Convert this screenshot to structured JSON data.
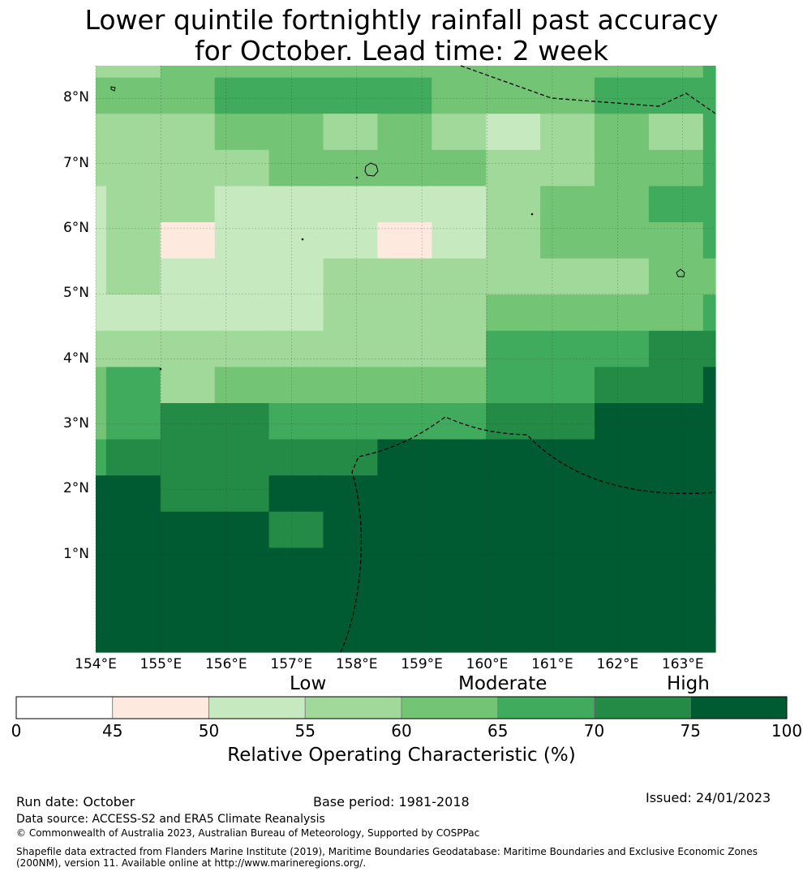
{
  "title": {
    "line1": "Lower quintile fortnightly rainfall past accuracy",
    "line2": "for October. Lead time: 2 week"
  },
  "map": {
    "lon_range": [
      154,
      163.5
    ],
    "lat_range": [
      -0.5,
      8.5
    ],
    "lat_labels": [
      "1°N",
      "2°N",
      "3°N",
      "4°N",
      "5°N",
      "6°N",
      "7°N",
      "8°N"
    ],
    "lon_labels": [
      "154°E",
      "155°E",
      "156°E",
      "157°E",
      "158°E",
      "159°E",
      "160°E",
      "161°E",
      "162°E",
      "163°E"
    ],
    "colors": [
      "#ffffff",
      "#fee9df",
      "#c7e9c0",
      "#a1d99b",
      "#74c476",
      "#41ab5d",
      "#238b45",
      "#005a32"
    ],
    "grid_rows": [
      "33444444444455",
      "44455554445556",
      "33344343234354",
      "33334444334454",
      "23322222344554",
      "23122212344455",
      "23222333333444",
      "22222333444455",
      "33333333555666",
      "45344444556677",
      "45665555667777",
      "56666677777777",
      "77667777777777",
      "77776777777777",
      "77777777777777",
      "77777777777777",
      "77777777777777"
    ]
  },
  "colorbar": {
    "ticks": [
      "0",
      "45",
      "50",
      "55",
      "60",
      "65",
      "70",
      "75",
      "100"
    ],
    "categories": [
      "Low",
      "Moderate",
      "High"
    ],
    "title": "Relative Operating Characteristic (%)"
  },
  "footer": {
    "run_date": "Run date: October",
    "base_period": "Base period: 1981-2018",
    "issued": "Issued: 24/01/2023",
    "data_source": "Data source: ACCESS-S2 and ERA5 Climate Reanalysis",
    "copyright": "© Commonwealth of Australia 2023, Australian Bureau of Meteorology, Supported by COSPPac",
    "shapefile_line1": "Shapefile data extracted from Flanders Marine Institute (2019), Maritime Boundaries Geodatabase: Maritime Boundaries and Exclusive Economic Zones",
    "shapefile_line2": "(200NM), version 11. Available online at http://www.marineregions.org/."
  }
}
